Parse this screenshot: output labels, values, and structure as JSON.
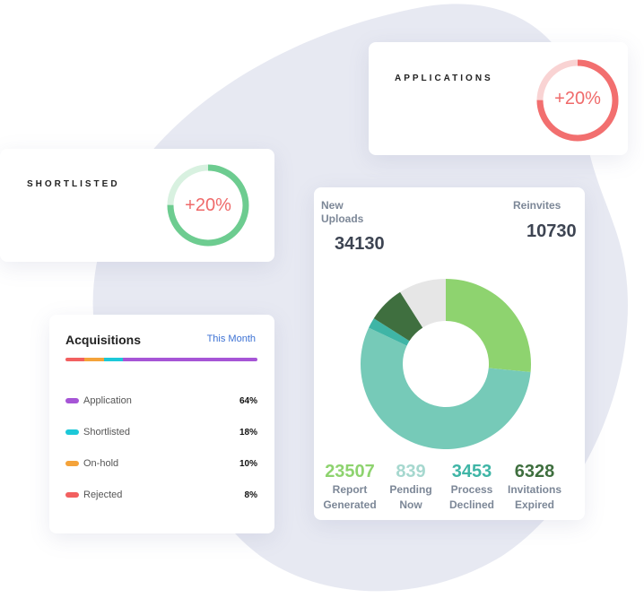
{
  "applications": {
    "title": "APPLICATIONS",
    "percent_label": "+20%",
    "progress": 0.75,
    "color_track": "#f9d3d3",
    "color_fill": "#f26f6f"
  },
  "shortlisted": {
    "title": "SHORTLISTED",
    "percent_label": "+20%",
    "progress": 0.75,
    "color_track": "#d8f1e0",
    "color_fill": "#6dcc90"
  },
  "acquisitions": {
    "title": "Acquisitions",
    "period": "This Month",
    "items": [
      {
        "label": "Application",
        "value": "64%",
        "color": "#a655d6"
      },
      {
        "label": "Shortlisted",
        "value": "18%",
        "color": "#1cc8d8"
      },
      {
        "label": "On-hold",
        "value": "10%",
        "color": "#f4a33a"
      },
      {
        "label": "Rejected",
        "value": "8%",
        "color": "#f26060"
      }
    ],
    "bar_order": [
      "Rejected",
      "On-hold",
      "Shortlisted",
      "Application"
    ]
  },
  "stats": {
    "new_uploads_label": "New Uploads",
    "new_uploads_value": "34130",
    "reinvites_label": "Reinvites",
    "reinvites_value": "10730"
  },
  "chart_data": {
    "type": "pie",
    "slices": [
      {
        "name": "Report Generated",
        "value": 23507,
        "color": "#8ed36f"
      },
      {
        "name": "Process Declined",
        "value": 3453,
        "color": "#76cab8"
      },
      {
        "name": "Pending Now",
        "value": 839,
        "color": "#3fb5a6"
      },
      {
        "name": "Invitations Expired",
        "value": 6328,
        "color": "#3f6f3f"
      }
    ],
    "legend": [
      {
        "value": "23507",
        "label1": "Report",
        "label2": "Generated",
        "color": "#8ed36f"
      },
      {
        "value": "839",
        "label1": "Pending",
        "label2": "Now",
        "color": "#a6d8cf"
      },
      {
        "value": "3453",
        "label1": "Process",
        "label2": "Declined",
        "color": "#3fb5a6"
      },
      {
        "value": "6328",
        "label1": "Invitations",
        "label2": "Expired",
        "color": "#3f6f3f"
      }
    ],
    "remainder_color": "#e6e6e6"
  }
}
